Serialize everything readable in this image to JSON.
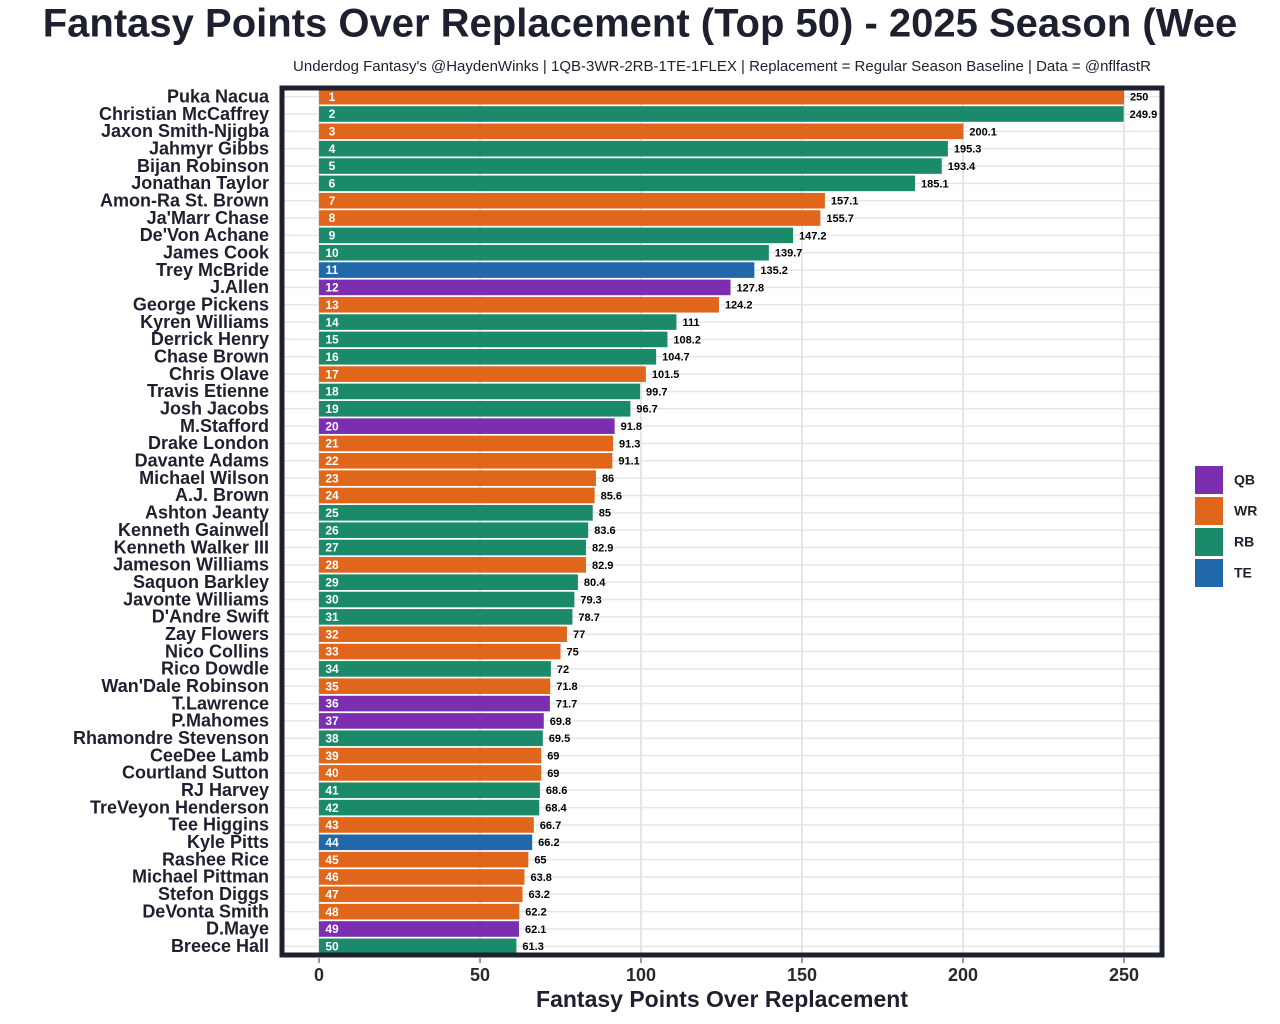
{
  "chart_data": {
    "type": "bar",
    "orientation": "horizontal",
    "title": "Fantasy Points Over Replacement (Top 50) - 2025 Season (Wee",
    "subtitle": "Underdog Fantasy's @HaydenWinks | 1QB-3WR-2RB-1TE-1FLEX | Replacement = Regular Season Baseline | Data = @nflfastR",
    "x_label": "Fantasy Points Over Replacement",
    "categories": [
      "Puka Nacua",
      "Christian McCaffrey",
      "Jaxon Smith-Njigba",
      "Jahmyr Gibbs",
      "Bijan Robinson",
      "Jonathan Taylor",
      "Amon-Ra St. Brown",
      "Ja'Marr Chase",
      "De'Von Achane",
      "James Cook",
      "Trey McBride",
      "J.Allen",
      "George Pickens",
      "Kyren Williams",
      "Derrick Henry",
      "Chase Brown",
      "Chris Olave",
      "Travis Etienne",
      "Josh Jacobs",
      "M.Stafford",
      "Drake London",
      "Davante Adams",
      "Michael Wilson",
      "A.J. Brown",
      "Ashton Jeanty",
      "Kenneth Gainwell",
      "Kenneth Walker III",
      "Jameson Williams",
      "Saquon Barkley",
      "Javonte Williams",
      "D'Andre Swift",
      "Zay Flowers",
      "Nico Collins",
      "Rico Dowdle",
      "Wan'Dale Robinson",
      "T.Lawrence",
      "P.Mahomes",
      "Rhamondre Stevenson",
      "CeeDee Lamb",
      "Courtland Sutton",
      "RJ Harvey",
      "TreVeyon Henderson",
      "Tee Higgins",
      "Kyle Pitts",
      "Rashee Rice",
      "Michael Pittman",
      "Stefon Diggs",
      "DeVonta Smith",
      "D.Maye",
      "Breece Hall"
    ],
    "values": [
      250,
      249.9,
      200.1,
      195.3,
      193.4,
      185.1,
      157.1,
      155.7,
      147.2,
      139.7,
      135.2,
      127.8,
      124.2,
      111,
      108.2,
      104.7,
      101.5,
      99.7,
      96.7,
      91.8,
      91.3,
      91.1,
      86,
      85.6,
      85,
      83.6,
      82.9,
      82.9,
      80.4,
      79.3,
      78.7,
      77,
      75,
      72,
      71.8,
      71.7,
      69.8,
      69.5,
      69,
      69,
      68.6,
      68.4,
      66.7,
      66.2,
      65,
      63.8,
      63.2,
      62.2,
      62.1,
      61.3
    ],
    "ranks": [
      1,
      2,
      3,
      4,
      5,
      6,
      7,
      8,
      9,
      10,
      11,
      12,
      13,
      14,
      15,
      16,
      17,
      18,
      19,
      20,
      21,
      22,
      23,
      24,
      25,
      26,
      27,
      28,
      29,
      30,
      31,
      32,
      33,
      34,
      35,
      36,
      37,
      38,
      39,
      40,
      41,
      42,
      43,
      44,
      45,
      46,
      47,
      48,
      49,
      50
    ],
    "colors": [
      "#e0661b",
      "#1b8a6b",
      "#e0661b",
      "#1b8a6b",
      "#1b8a6b",
      "#1b8a6b",
      "#e0661b",
      "#e0661b",
      "#1b8a6b",
      "#1b8a6b",
      "#2068aa",
      "#7b2fb0",
      "#e0661b",
      "#1b8a6b",
      "#1b8a6b",
      "#1b8a6b",
      "#e0661b",
      "#1b8a6b",
      "#1b8a6b",
      "#7b2fb0",
      "#e0661b",
      "#e0661b",
      "#e0661b",
      "#e0661b",
      "#1b8a6b",
      "#1b8a6b",
      "#1b8a6b",
      "#e0661b",
      "#1b8a6b",
      "#1b8a6b",
      "#1b8a6b",
      "#e0661b",
      "#e0661b",
      "#1b8a6b",
      "#e0661b",
      "#7b2fb0",
      "#7b2fb0",
      "#1b8a6b",
      "#e0661b",
      "#e0661b",
      "#1b8a6b",
      "#1b8a6b",
      "#e0661b",
      "#2068aa",
      "#e0661b",
      "#e0661b",
      "#e0661b",
      "#e0661b",
      "#7b2fb0",
      "#1b8a6b"
    ],
    "legend": [
      {
        "name": "QB",
        "color": "#7b2fb0"
      },
      {
        "name": "WR",
        "color": "#e0661b"
      },
      {
        "name": "RB",
        "color": "#1b8a6b"
      },
      {
        "name": "TE",
        "color": "#2068aa"
      }
    ],
    "xlim": [
      -11.5,
      261.8
    ],
    "xticks": [
      0,
      50,
      100,
      150,
      200,
      250
    ],
    "grid": true
  }
}
